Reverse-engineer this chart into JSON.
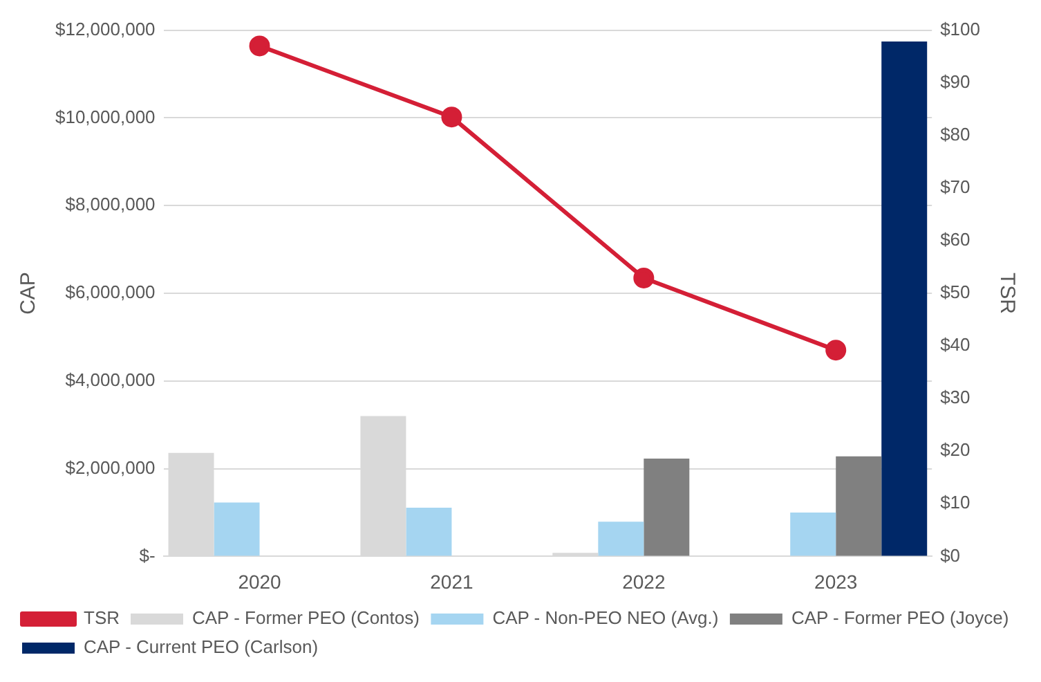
{
  "chart_data": {
    "type": "bar",
    "categories": [
      "2020",
      "2021",
      "2022",
      "2023"
    ],
    "ylabel": "CAP",
    "y2label": "TSR",
    "ylim": [
      0,
      12000000
    ],
    "yticks": [
      {
        "value": 0,
        "label": "$-"
      },
      {
        "value": 2000000,
        "label": "$2,000,000"
      },
      {
        "value": 4000000,
        "label": "$4,000,000"
      },
      {
        "value": 6000000,
        "label": "$6,000,000"
      },
      {
        "value": 8000000,
        "label": "$8,000,000"
      },
      {
        "value": 10000000,
        "label": "$10,000,000"
      },
      {
        "value": 12000000,
        "label": "$12,000,000"
      }
    ],
    "y2lim": [
      0,
      100
    ],
    "y2ticks": [
      {
        "value": 0,
        "label": "$0"
      },
      {
        "value": 10,
        "label": "$10"
      },
      {
        "value": 20,
        "label": "$20"
      },
      {
        "value": 30,
        "label": "$30"
      },
      {
        "value": 40,
        "label": "$40"
      },
      {
        "value": 50,
        "label": "$50"
      },
      {
        "value": 60,
        "label": "$60"
      },
      {
        "value": 70,
        "label": "$70"
      },
      {
        "value": 80,
        "label": "$80"
      },
      {
        "value": 90,
        "label": "$90"
      },
      {
        "value": 100,
        "label": "$100"
      }
    ],
    "grid": "y",
    "legend": "bottom",
    "series": [
      {
        "name": "CAP - Former PEO (Contos)",
        "color": "#d9d9d9",
        "values": [
          2360000,
          3200000,
          80000,
          null
        ]
      },
      {
        "name": "CAP - Non-PEO NEO (Avg.)",
        "color": "#a5d5f1",
        "values": [
          1230000,
          1110000,
          790000,
          1000000
        ]
      },
      {
        "name": "CAP - Former PEO (Joyce)",
        "color": "#808080",
        "values": [
          null,
          null,
          2230000,
          2280000
        ]
      },
      {
        "name": "CAP - Current PEO (Carlson)",
        "color": "#002868",
        "values": [
          null,
          null,
          null,
          11740000
        ]
      },
      {
        "name": "TSR",
        "type": "line",
        "axis": "y2",
        "color": "#d41f36",
        "marker": "circle",
        "values": [
          97,
          83.5,
          52.9,
          39.2
        ]
      }
    ]
  }
}
